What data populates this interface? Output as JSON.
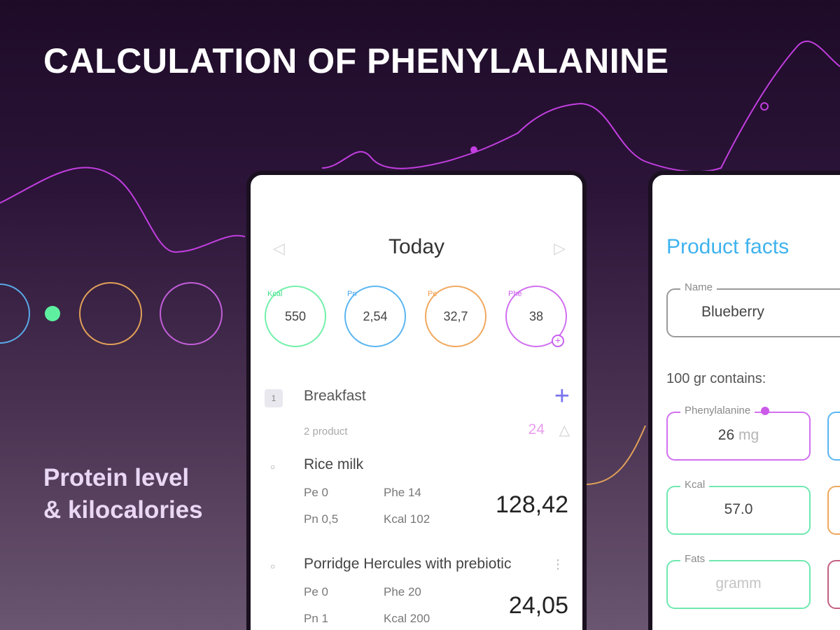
{
  "header": {
    "title": "CALCULATION OF PHENYLALANINE",
    "tagline_line1": "Protein level",
    "tagline_line2": "& kilocalories"
  },
  "colors": {
    "curve": "#c23ee0",
    "ring_blue": "#59a9e8",
    "dot_green": "#5ef0a0",
    "ring_orange": "#e0a058",
    "ring_purple": "#c25ed8"
  },
  "today_screen": {
    "title": "Today",
    "prev_icon": "◁",
    "next_icon": "▷",
    "rings": [
      {
        "label": "Kcal",
        "value": "550"
      },
      {
        "label": "Pn",
        "value": "2,54"
      },
      {
        "label": "Pe",
        "value": "32,7"
      },
      {
        "label": "Phe",
        "value": "38"
      }
    ],
    "meal": {
      "index": "1",
      "name": "Breakfast",
      "add_icon": "+",
      "count": "2 product",
      "total": "24",
      "toggle_icon": "△"
    },
    "foods": [
      {
        "name": "Rice milk",
        "pe": "Pe 0",
        "phe": "Phe 14",
        "pn": "Pn 0,5",
        "kcal": "Kcal 102",
        "total": "128,42"
      },
      {
        "name": "Porridge Hercules with prebiotic",
        "pe": "Pe 0",
        "phe": "Phe 20",
        "pn": "Pn 1",
        "kcal": "Kcal 200",
        "total": "24,05"
      }
    ]
  },
  "product_screen": {
    "title": "Product facts",
    "name_label": "Name",
    "name_value": "Blueberry",
    "contains_label": "100 gr contains:",
    "fields": {
      "phenylalanine": {
        "label": "Phenylalanine",
        "value": "26",
        "unit": "mg"
      },
      "kcal": {
        "label": "Kcal",
        "value": "57.0"
      },
      "fats": {
        "label": "Fats",
        "placeholder": "gramm"
      }
    }
  }
}
